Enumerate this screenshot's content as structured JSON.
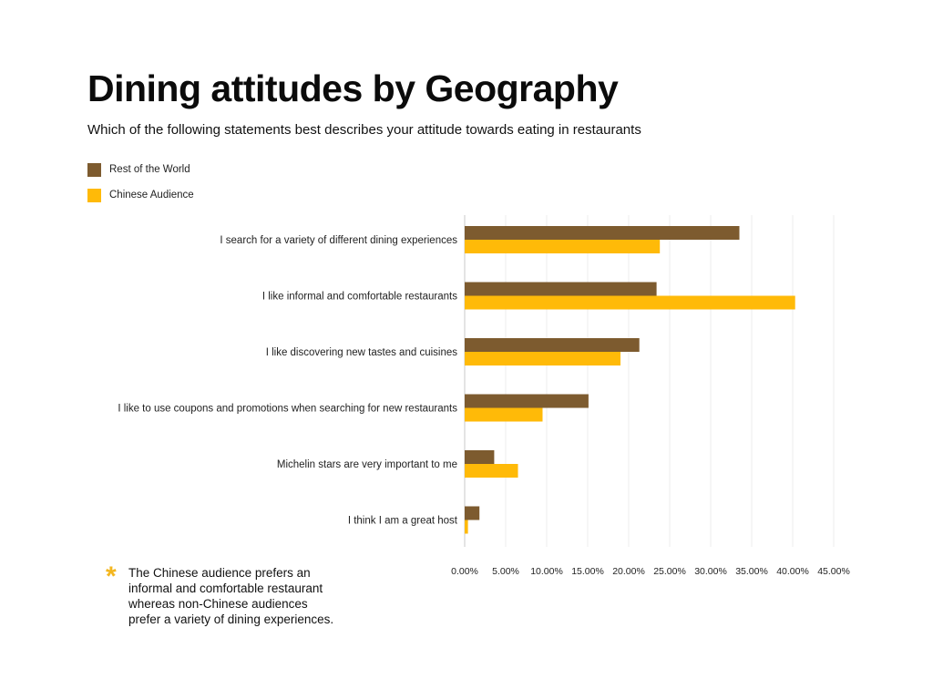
{
  "title": "Dining attitudes by Geography",
  "subtitle": "Which of the following statements best describes your attitude towards eating in restaurants",
  "colors": {
    "rest_of_world": "#7d5b2f",
    "chinese_audience": "#ffba08",
    "accent_star": "#f3b61f"
  },
  "note": {
    "icon": "asterisk-icon",
    "text": "The Chinese audience prefers an informal and comfortable restaurant whereas non-Chinese audiences prefer a variety of dining experiences."
  },
  "chart_data": {
    "type": "bar",
    "orientation": "horizontal",
    "title": "Dining attitudes by Geography",
    "subtitle": "Which of the following statements best describes your attitude towards eating in restaurants",
    "categories": [
      "I search for a variety of different dining experiences",
      "I like informal and comfortable restaurants",
      "I like discovering new tastes and cuisines",
      "I like to use coupons and promotions when searching for new restaurants",
      "Michelin stars are very important to me",
      "I think I am a great host"
    ],
    "series": [
      {
        "name": "Rest of the World",
        "values": [
          33.5,
          23.4,
          21.3,
          15.1,
          3.6,
          1.8
        ]
      },
      {
        "name": "Chinese Audience",
        "values": [
          23.8,
          40.3,
          19.0,
          9.5,
          6.5,
          0.4
        ]
      }
    ],
    "xlim": [
      0,
      45
    ],
    "xticks": [
      "0.00%",
      "5.00%",
      "10.00%",
      "15.00%",
      "20.00%",
      "25.00%",
      "30.00%",
      "35.00%",
      "40.00%",
      "45.00%"
    ],
    "xlabel": "",
    "ylabel": "",
    "grid": true,
    "legend": "top-left"
  }
}
